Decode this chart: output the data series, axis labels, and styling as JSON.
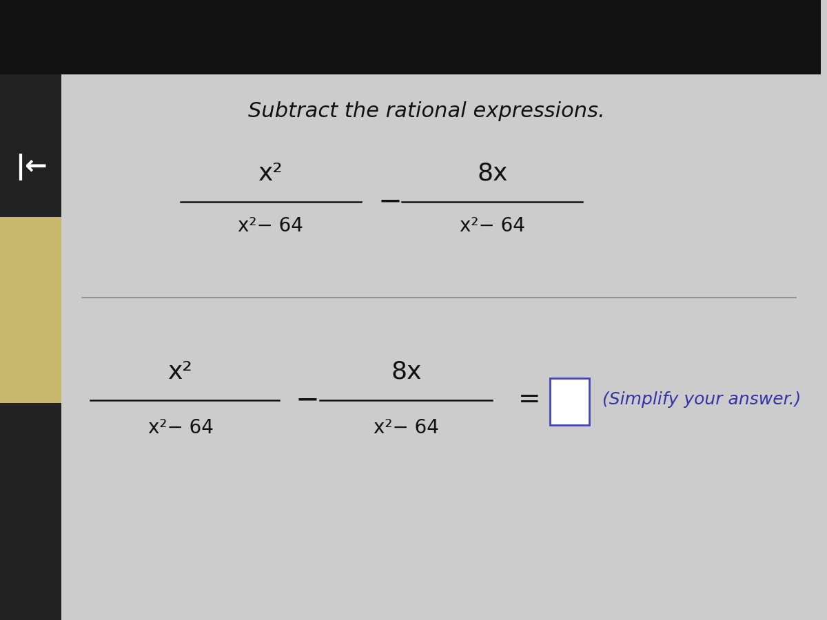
{
  "bg_top": "#111111",
  "bg_main": "#cccccc",
  "bg_left_dark": "#222222",
  "bg_left_yellow": "#c8b86e",
  "title": "Subtract the rational expressions.",
  "title_fontsize": 22,
  "title_color": "#111111",
  "math_color": "#111111",
  "blue_color": "#3333aa",
  "separator_line_color": "#888888",
  "answer_box_color": "#4444bb",
  "simplify_text": "(Simplify your answer.)",
  "fraction1_num": "x²",
  "fraction1_den": "x²− 64",
  "fraction2_num": "8x",
  "fraction2_den": "x²− 64",
  "fraction3_num": "x²",
  "fraction3_den": "x²− 64",
  "fraction4_num": "8x",
  "fraction4_den": "x²− 64"
}
